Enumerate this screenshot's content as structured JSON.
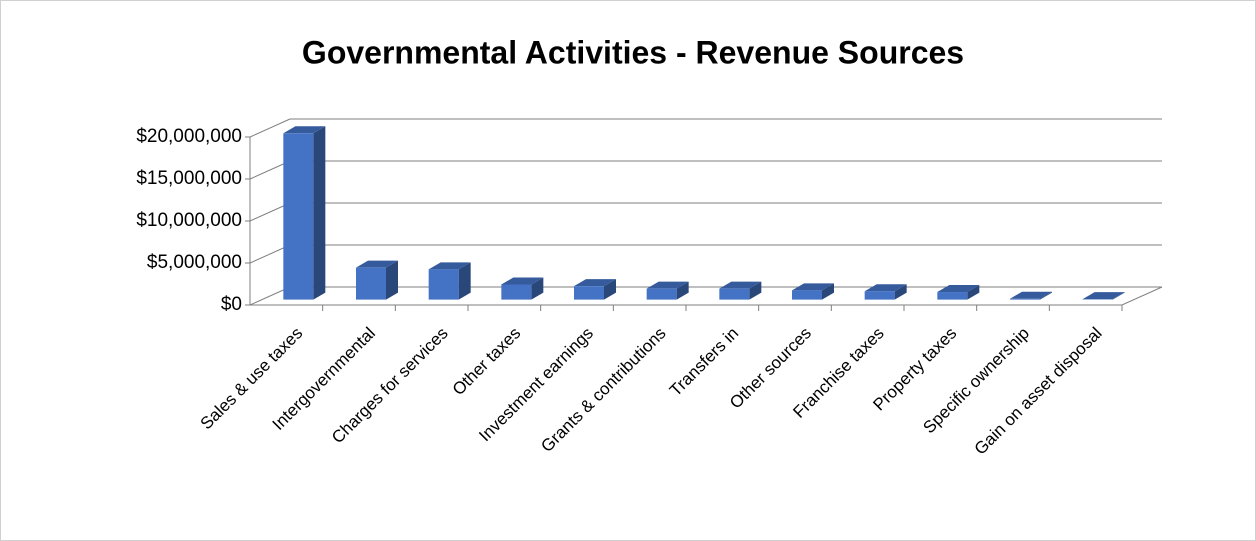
{
  "chart_data": {
    "type": "bar3d",
    "title": "Governmental Activities - Revenue Sources",
    "categories": [
      "Sales & use taxes",
      "Intergovernmental",
      "Charges for services",
      "Other taxes",
      "Investment earnings",
      "Grants & contributions",
      "Transfers in",
      "Other sources",
      "Franchise taxes",
      "Property taxes",
      "Specific ownership",
      "Gain on asset disposal"
    ],
    "values": [
      19800000,
      3800000,
      3600000,
      1800000,
      1600000,
      1300000,
      1300000,
      1100000,
      1000000,
      900000,
      100000,
      50000
    ],
    "color": "#4472c4",
    "ylim": [
      0,
      20000000
    ],
    "yticks": [
      {
        "value": 0,
        "label": "$0"
      },
      {
        "value": 5000000,
        "label": "$5,000,000"
      },
      {
        "value": 10000000,
        "label": "$10,000,000"
      },
      {
        "value": 15000000,
        "label": "$15,000,000"
      },
      {
        "value": 20000000,
        "label": "$20,000,000"
      }
    ],
    "grid": true
  }
}
